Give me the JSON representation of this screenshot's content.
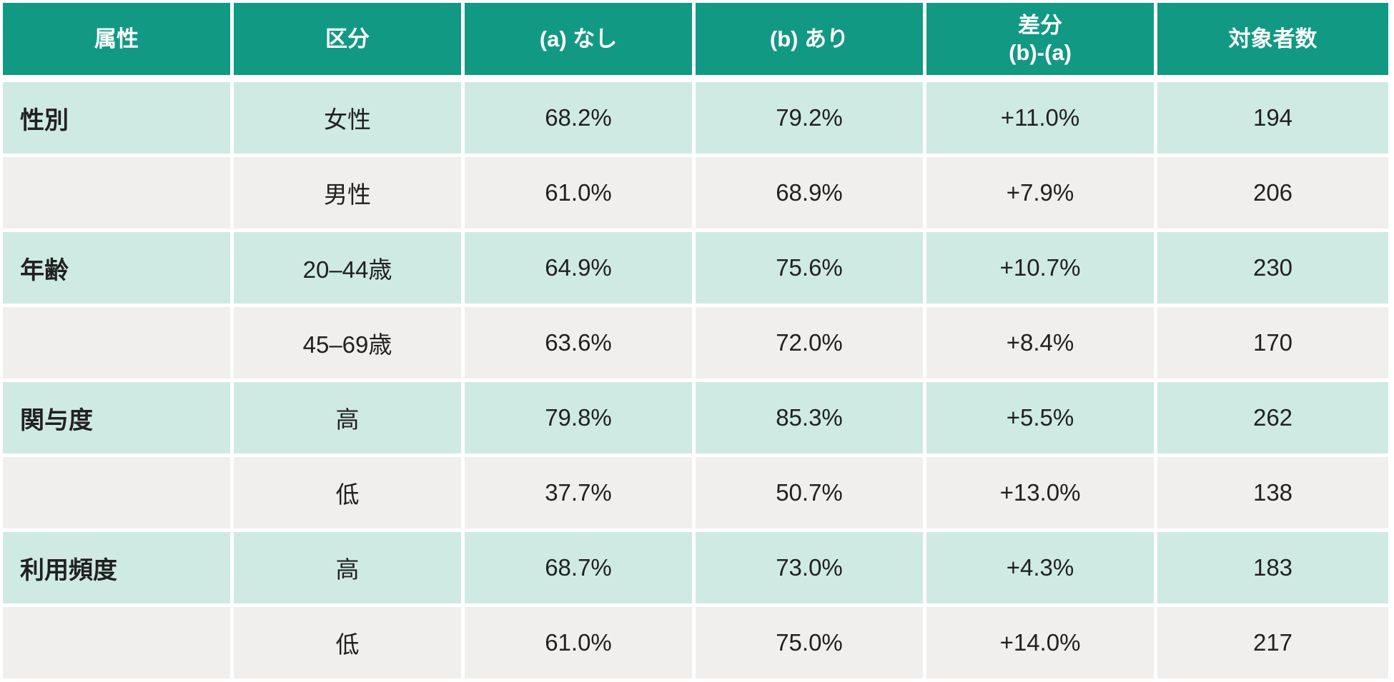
{
  "colors": {
    "header_bg": "#129983",
    "row_green": "#cfeae3",
    "row_gray": "#f0efed",
    "header_text": "#ffffff",
    "body_text": "#212121"
  },
  "table": {
    "columns": [
      {
        "label": "属性"
      },
      {
        "label": "区分"
      },
      {
        "label": "(a) なし"
      },
      {
        "label": "(b) あり"
      },
      {
        "label_line1": "差分",
        "label_line2": "(b)-(a)"
      },
      {
        "label": "対象者数"
      }
    ],
    "rows": [
      {
        "attribute": "性別",
        "category": "女性",
        "a": "68.2%",
        "b": "79.2%",
        "diff": "+11.0%",
        "n": "194"
      },
      {
        "attribute": "",
        "category": "男性",
        "a": "61.0%",
        "b": "68.9%",
        "diff": "+7.9%",
        "n": "206"
      },
      {
        "attribute": "年齢",
        "category": "20–44歳",
        "a": "64.9%",
        "b": "75.6%",
        "diff": "+10.7%",
        "n": "230"
      },
      {
        "attribute": "",
        "category": "45–69歳",
        "a": "63.6%",
        "b": "72.0%",
        "diff": "+8.4%",
        "n": "170"
      },
      {
        "attribute": "関与度",
        "category": "高",
        "a": "79.8%",
        "b": "85.3%",
        "diff": "+5.5%",
        "n": "262"
      },
      {
        "attribute": "",
        "category": "低",
        "a": "37.7%",
        "b": "50.7%",
        "diff": "+13.0%",
        "n": "138"
      },
      {
        "attribute": "利用頻度",
        "category": "高",
        "a": "68.7%",
        "b": "73.0%",
        "diff": "+4.3%",
        "n": "183"
      },
      {
        "attribute": "",
        "category": "低",
        "a": "61.0%",
        "b": "75.0%",
        "diff": "+14.0%",
        "n": "217"
      }
    ]
  }
}
